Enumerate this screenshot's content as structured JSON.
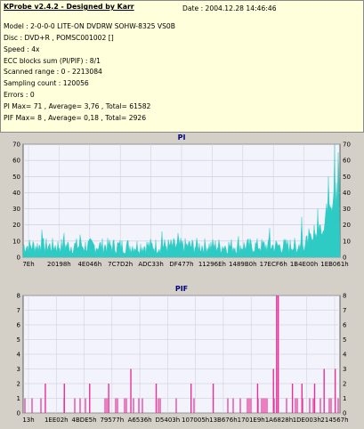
{
  "report": {
    "title": "KProbe v2.4.2 - Designed by Karr",
    "date": "Date : 2004.12.28 14:46:46",
    "lines": [
      "Model : 2-0-0-0 LITE-ON DVDRW SOHW-8325  VS0B",
      "Disc : DVD+R , POMSC001002 []",
      "Speed : 4x",
      "ECC blocks sum (PI/PIF) : 8/1",
      "Scanned range : 0 - 2213084",
      "Sampling count : 120056",
      "Errors : 0",
      "PI Max= 71 , Average= 3,76 , Total= 61582",
      "PIF Max= 8 , Average= 0,18 , Total= 2926"
    ]
  },
  "chart_data": [
    {
      "type": "area",
      "title": "PI",
      "color": "#2ecbc4",
      "ylim": [
        0,
        70
      ],
      "yticks": [
        0,
        10,
        20,
        30,
        40,
        50,
        60,
        70
      ],
      "grid": true,
      "x_tick_labels": [
        "7Eh",
        "20198h",
        "4E046h",
        "7C7D2h",
        "ADC33h",
        "DF477h",
        "11296Eh",
        "1489B0h",
        "17ECF6h",
        "1B4E00h",
        "1EB061h"
      ],
      "baseline_range": [
        2,
        12
      ],
      "spikes": [
        {
          "pos": 0.06,
          "value": 17
        },
        {
          "pos": 0.13,
          "value": 15
        },
        {
          "pos": 0.18,
          "value": 14
        },
        {
          "pos": 0.44,
          "value": 16
        },
        {
          "pos": 0.49,
          "value": 15
        },
        {
          "pos": 0.68,
          "value": 13
        },
        {
          "pos": 0.78,
          "value": 18
        },
        {
          "pos": 0.88,
          "value": 25
        },
        {
          "pos": 0.93,
          "value": 30
        },
        {
          "pos": 0.965,
          "value": 50
        },
        {
          "pos": 0.985,
          "value": 71
        },
        {
          "pos": 0.995,
          "value": 65
        }
      ],
      "tail": {
        "start": 0.85,
        "end_value": 45
      }
    },
    {
      "type": "bar",
      "title": "PIF",
      "color": "#e8309a",
      "ylim": [
        0,
        8
      ],
      "yticks": [
        0,
        1,
        2,
        3,
        4,
        5,
        6,
        7,
        8
      ],
      "grid": true,
      "x_tick_labels": [
        "13h",
        "1EE02h",
        "4BDE5h",
        "79577h",
        "A6536h",
        "D5403h",
        "107005h",
        "13B676h",
        "1701E9h",
        "1A6828h",
        "1DE003h",
        "214567h"
      ],
      "spikes": [
        {
          "pos": 0.07,
          "value": 2
        },
        {
          "pos": 0.13,
          "value": 2
        },
        {
          "pos": 0.21,
          "value": 2
        },
        {
          "pos": 0.27,
          "value": 2
        },
        {
          "pos": 0.34,
          "value": 3
        },
        {
          "pos": 0.42,
          "value": 2
        },
        {
          "pos": 0.53,
          "value": 2
        },
        {
          "pos": 0.6,
          "value": 2
        },
        {
          "pos": 0.74,
          "value": 2
        },
        {
          "pos": 0.79,
          "value": 3
        },
        {
          "pos": 0.8,
          "value": 8
        },
        {
          "pos": 0.805,
          "value": 8
        },
        {
          "pos": 0.85,
          "value": 2
        },
        {
          "pos": 0.88,
          "value": 2
        },
        {
          "pos": 0.92,
          "value": 2
        },
        {
          "pos": 0.95,
          "value": 3
        },
        {
          "pos": 0.985,
          "value": 3
        }
      ],
      "base_value": 1
    }
  ]
}
